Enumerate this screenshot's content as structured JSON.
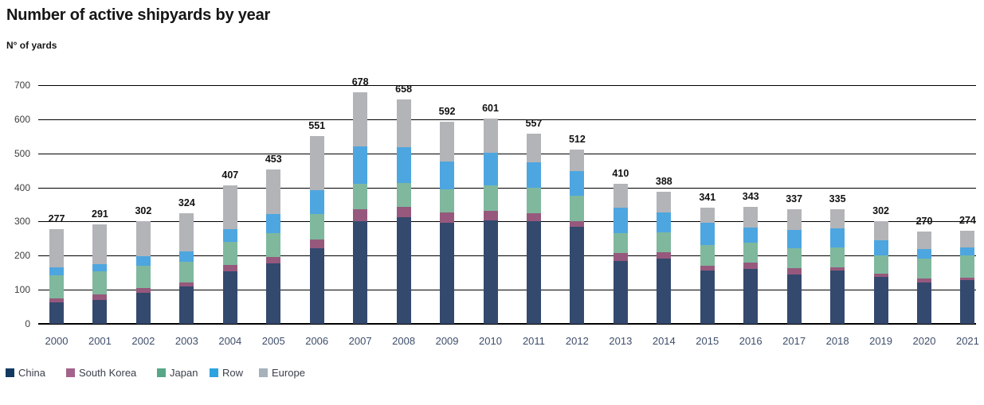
{
  "chart_data": {
    "type": "bar",
    "stacked": true,
    "title": "Number of active shipyards by year",
    "ylabel": "N° of yards",
    "categories": [
      "2000",
      "2001",
      "2002",
      "2003",
      "2004",
      "2005",
      "2006",
      "2007",
      "2008",
      "2009",
      "2010",
      "2011",
      "2012",
      "2013",
      "2014",
      "2015",
      "2016",
      "2017",
      "2018",
      "2019",
      "2020",
      "2021"
    ],
    "series": [
      {
        "name": "China",
        "color": "#34496e",
        "legend_color": "#123a61",
        "values": [
          62,
          70,
          90,
          109,
          154,
          177,
          222,
          301,
          312,
          297,
          303,
          302,
          285,
          185,
          191,
          156,
          160,
          144,
          157,
          138,
          122,
          128
        ]
      },
      {
        "name": "South Korea",
        "color": "#96597d",
        "legend_color": "#a3638c",
        "values": [
          13,
          16,
          15,
          12,
          19,
          19,
          25,
          35,
          31,
          29,
          29,
          23,
          17,
          22,
          19,
          15,
          20,
          19,
          8,
          8,
          10,
          7
        ]
      },
      {
        "name": "Japan",
        "color": "#7fb89d",
        "legend_color": "#56a787",
        "values": [
          67,
          68,
          66,
          62,
          68,
          70,
          76,
          74,
          71,
          68,
          74,
          75,
          73,
          60,
          59,
          60,
          57,
          59,
          58,
          55,
          60,
          65
        ]
      },
      {
        "name": "Row",
        "color": "#4da6e0",
        "legend_color": "#2ba3e0",
        "values": [
          24,
          21,
          27,
          30,
          37,
          55,
          70,
          111,
          104,
          82,
          95,
          74,
          74,
          73,
          58,
          65,
          45,
          54,
          57,
          44,
          28,
          23
        ]
      },
      {
        "name": "Europe",
        "color": "#b3b4b8",
        "legend_color": "#a5b2ba",
        "values": [
          111,
          116,
          104,
          111,
          129,
          132,
          158,
          157,
          140,
          116,
          100,
          83,
          63,
          70,
          61,
          45,
          61,
          61,
          55,
          57,
          50,
          51
        ]
      }
    ],
    "totals": [
      277,
      291,
      302,
      324,
      407,
      453,
      551,
      678,
      658,
      592,
      601,
      557,
      512,
      410,
      388,
      341,
      343,
      337,
      335,
      302,
      270,
      274
    ],
    "ylim": [
      0,
      700
    ],
    "yticks": [
      0,
      100,
      200,
      300,
      400,
      500,
      600,
      700
    ],
    "grid": true,
    "legend_position": "bottom"
  }
}
